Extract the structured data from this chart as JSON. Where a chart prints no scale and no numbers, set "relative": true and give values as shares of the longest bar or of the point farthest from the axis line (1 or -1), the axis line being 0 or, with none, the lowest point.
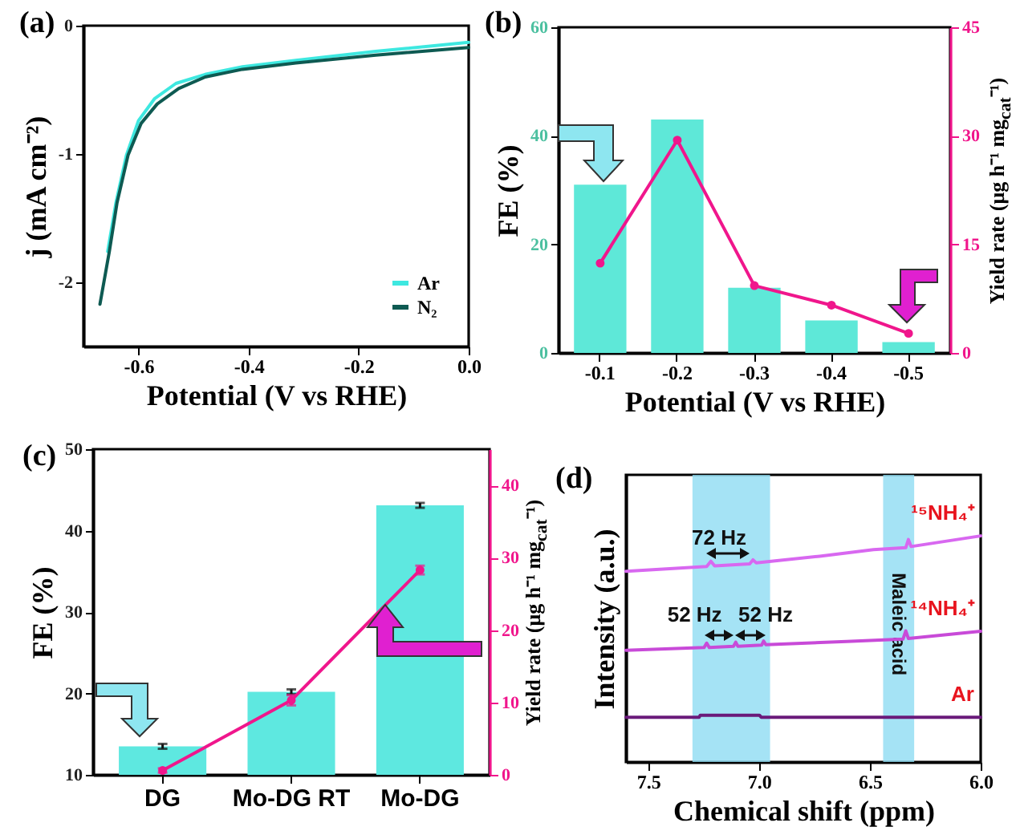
{
  "chart_data": [
    {
      "title": "(a)",
      "type": "line",
      "xlabel": "Potential (V vs RHE)",
      "ylabel": "j (mA cm⁻²)",
      "xlim": [
        -0.7,
        0
      ],
      "xticks": [
        -0.6,
        -0.4,
        -0.2,
        {
          "value": 0,
          "label": "0.0"
        }
      ],
      "ylim": [
        -2.5,
        0
      ],
      "yticks": [
        -2,
        -1,
        0
      ],
      "legend": "bottom right",
      "series": [
        {
          "name": "Ar",
          "color": "#3ee8e0",
          "x": [
            -0.656,
            -0.641,
            -0.622,
            -0.6,
            -0.571,
            -0.532,
            -0.479,
            -0.411,
            -0.314,
            -0.169,
            0
          ],
          "values": [
            -1.76,
            -1.38,
            -1.01,
            -0.74,
            -0.57,
            -0.45,
            -0.38,
            -0.32,
            -0.27,
            -0.2,
            -0.13
          ]
        },
        {
          "name": "N₂",
          "color": "#0e5a52",
          "x": [
            -0.67,
            -0.653,
            -0.639,
            -0.619,
            -0.595,
            -0.566,
            -0.527,
            -0.479,
            -0.411,
            -0.314,
            -0.169,
            0
          ],
          "values": [
            -2.17,
            -1.76,
            -1.38,
            -1.01,
            -0.76,
            -0.61,
            -0.49,
            -0.4,
            -0.34,
            -0.29,
            -0.23,
            -0.17
          ]
        }
      ]
    },
    {
      "title": "(b)",
      "type": "bar",
      "xlabel": "Potential (V vs RHE)",
      "ylabel": "FE (%)",
      "y2label": "Yield rate (μg h⁻¹ mg$_{cat}$⁻¹)",
      "categories": [
        "-0.1",
        "-0.2",
        "-0.3",
        "-0.4",
        "-0.5"
      ],
      "ylim": [
        0,
        60
      ],
      "yticks": [
        0,
        20,
        40,
        60
      ],
      "y2lim": [
        0,
        45
      ],
      "y2ticks": [
        0,
        15,
        30,
        45
      ],
      "marker": "circle",
      "series": [
        {
          "color": "#5ee8d8",
          "values": [
            31,
            43,
            12,
            6,
            2
          ]
        },
        {
          "type": "line",
          "axis": "y2",
          "color": "#f0168c",
          "values": [
            12.4,
            29.4,
            9.3,
            6.6,
            2.7
          ]
        }
      ]
    },
    {
      "title": "(c)",
      "type": "bar",
      "ylabel": "FE (%)",
      "y2label": "Yield rate (μg h⁻¹ mg$_{cat}$⁻¹)",
      "categories": [
        "DG",
        "Mo-DG RT",
        "Mo-DG"
      ],
      "ylim": [
        10,
        50
      ],
      "yticks": [
        10,
        20,
        30,
        40,
        50
      ],
      "y2lim": [
        0,
        45
      ],
      "y2ticks": [
        0,
        10,
        20,
        30,
        40
      ],
      "marker": "circle",
      "series": [
        {
          "color": "#5ee8e0",
          "values": [
            13.5,
            20.2,
            43.1
          ],
          "errors": [
            0.3,
            0.3,
            0.3
          ]
        },
        {
          "type": "line",
          "axis": "y2",
          "color": "#f0168c",
          "values": [
            0.6,
            10.3,
            28.3
          ],
          "errors": [
            0.3,
            0.7,
            0.6
          ]
        }
      ]
    },
    {
      "title": "(d)",
      "type": "line",
      "relative": true,
      "xlabel": "Chemical shift (ppm)",
      "ylabel": "Intensity (a.u.)",
      "xlim": [
        7.6,
        6.0
      ],
      "xticks": [
        7.5,
        {
          "value": 7,
          "label": "7.0"
        },
        6.5,
        {
          "value": 6,
          "label": "6.0"
        }
      ],
      "bands": [
        {
          "axis": "x",
          "from": 7.3,
          "to": 6.95,
          "color": "#8fdcf2"
        },
        {
          "axis": "x",
          "from": 6.44,
          "to": 6.3,
          "label": "Maleic acid",
          "color": "#8fdcf2"
        }
      ],
      "annotations": [
        "72 Hz",
        {
          "text": "52 Hz",
          "x": 7.29,
          "y": 0.65
        },
        {
          "text": "52 Hz",
          "x": 6.97,
          "y": 0.65
        }
      ],
      "series": [
        {
          "name": "¹⁵NH₄⁺",
          "color": "#d868f0",
          "x": [
            7.6,
            7.236,
            7.217,
            7.2,
            7.042,
            7.027,
            7.013,
            6.726,
            6.484,
            6.338,
            6.326,
            6.314,
            6.0
          ],
          "values": [
            0.843,
            0.865,
            0.888,
            0.867,
            0.876,
            0.894,
            0.881,
            0.91,
            0.939,
            0.948,
            0.984,
            0.953,
            1.0
          ]
        },
        {
          "name": "¹⁴NH₄⁺",
          "color": "#c84ad8",
          "x": [
            7.6,
            7.248,
            7.236,
            7.224,
            7.115,
            7.105,
            7.095,
            6.988,
            6.979,
            6.969,
            6.605,
            6.35,
            6.338,
            6.326,
            6.0
          ],
          "values": [
            0.494,
            0.506,
            0.526,
            0.506,
            0.512,
            0.53,
            0.512,
            0.517,
            0.535,
            0.519,
            0.533,
            0.544,
            0.58,
            0.546,
            0.578
          ]
        },
        {
          "name": "Ar",
          "color": "#6a1a7a",
          "x": [
            7.6,
            7.27,
            7.265,
            6.998,
            6.99,
            6.0
          ],
          "values": [
            0.198,
            0.198,
            0.207,
            0.207,
            0.198,
            0.198
          ]
        }
      ]
    }
  ]
}
